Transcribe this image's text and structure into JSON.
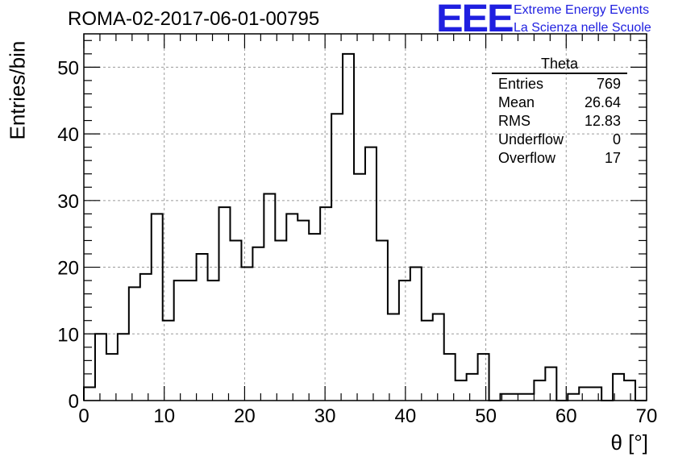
{
  "header": {
    "title": "ROMA-02-2017-06-01-00795",
    "logo_text": "EEE",
    "org_line1": "Extreme Energy Events",
    "org_line2": "La Scienza nelle Scuole",
    "logo_color": "#1f1fe0"
  },
  "stats": {
    "name": "Theta",
    "rows": [
      {
        "label": "Entries",
        "value": "769"
      },
      {
        "label": "Mean",
        "value": "26.64"
      },
      {
        "label": "RMS",
        "value": "12.83"
      },
      {
        "label": "Underflow",
        "value": "0"
      },
      {
        "label": "Overflow",
        "value": "17"
      }
    ]
  },
  "chart_data": {
    "type": "bar",
    "histogram": true,
    "xlabel": "θ [°]",
    "ylabel": "Entries/bin",
    "xlim": [
      0,
      70
    ],
    "ylim": [
      0,
      55
    ],
    "bin_width": 1.4,
    "x_ticks": [
      0,
      10,
      20,
      30,
      40,
      50,
      60,
      70
    ],
    "y_ticks": [
      0,
      10,
      20,
      30,
      40,
      50
    ],
    "grid": true,
    "values": [
      2,
      10,
      7,
      10,
      17,
      19,
      28,
      12,
      18,
      18,
      22,
      18,
      29,
      24,
      20,
      23,
      31,
      24,
      28,
      27,
      25,
      29,
      43,
      52,
      34,
      38,
      24,
      13,
      18,
      20,
      12,
      13,
      7,
      3,
      4,
      7,
      0,
      1,
      1,
      1,
      3,
      5,
      0,
      1,
      2,
      2,
      0,
      4,
      3,
      0
    ]
  }
}
